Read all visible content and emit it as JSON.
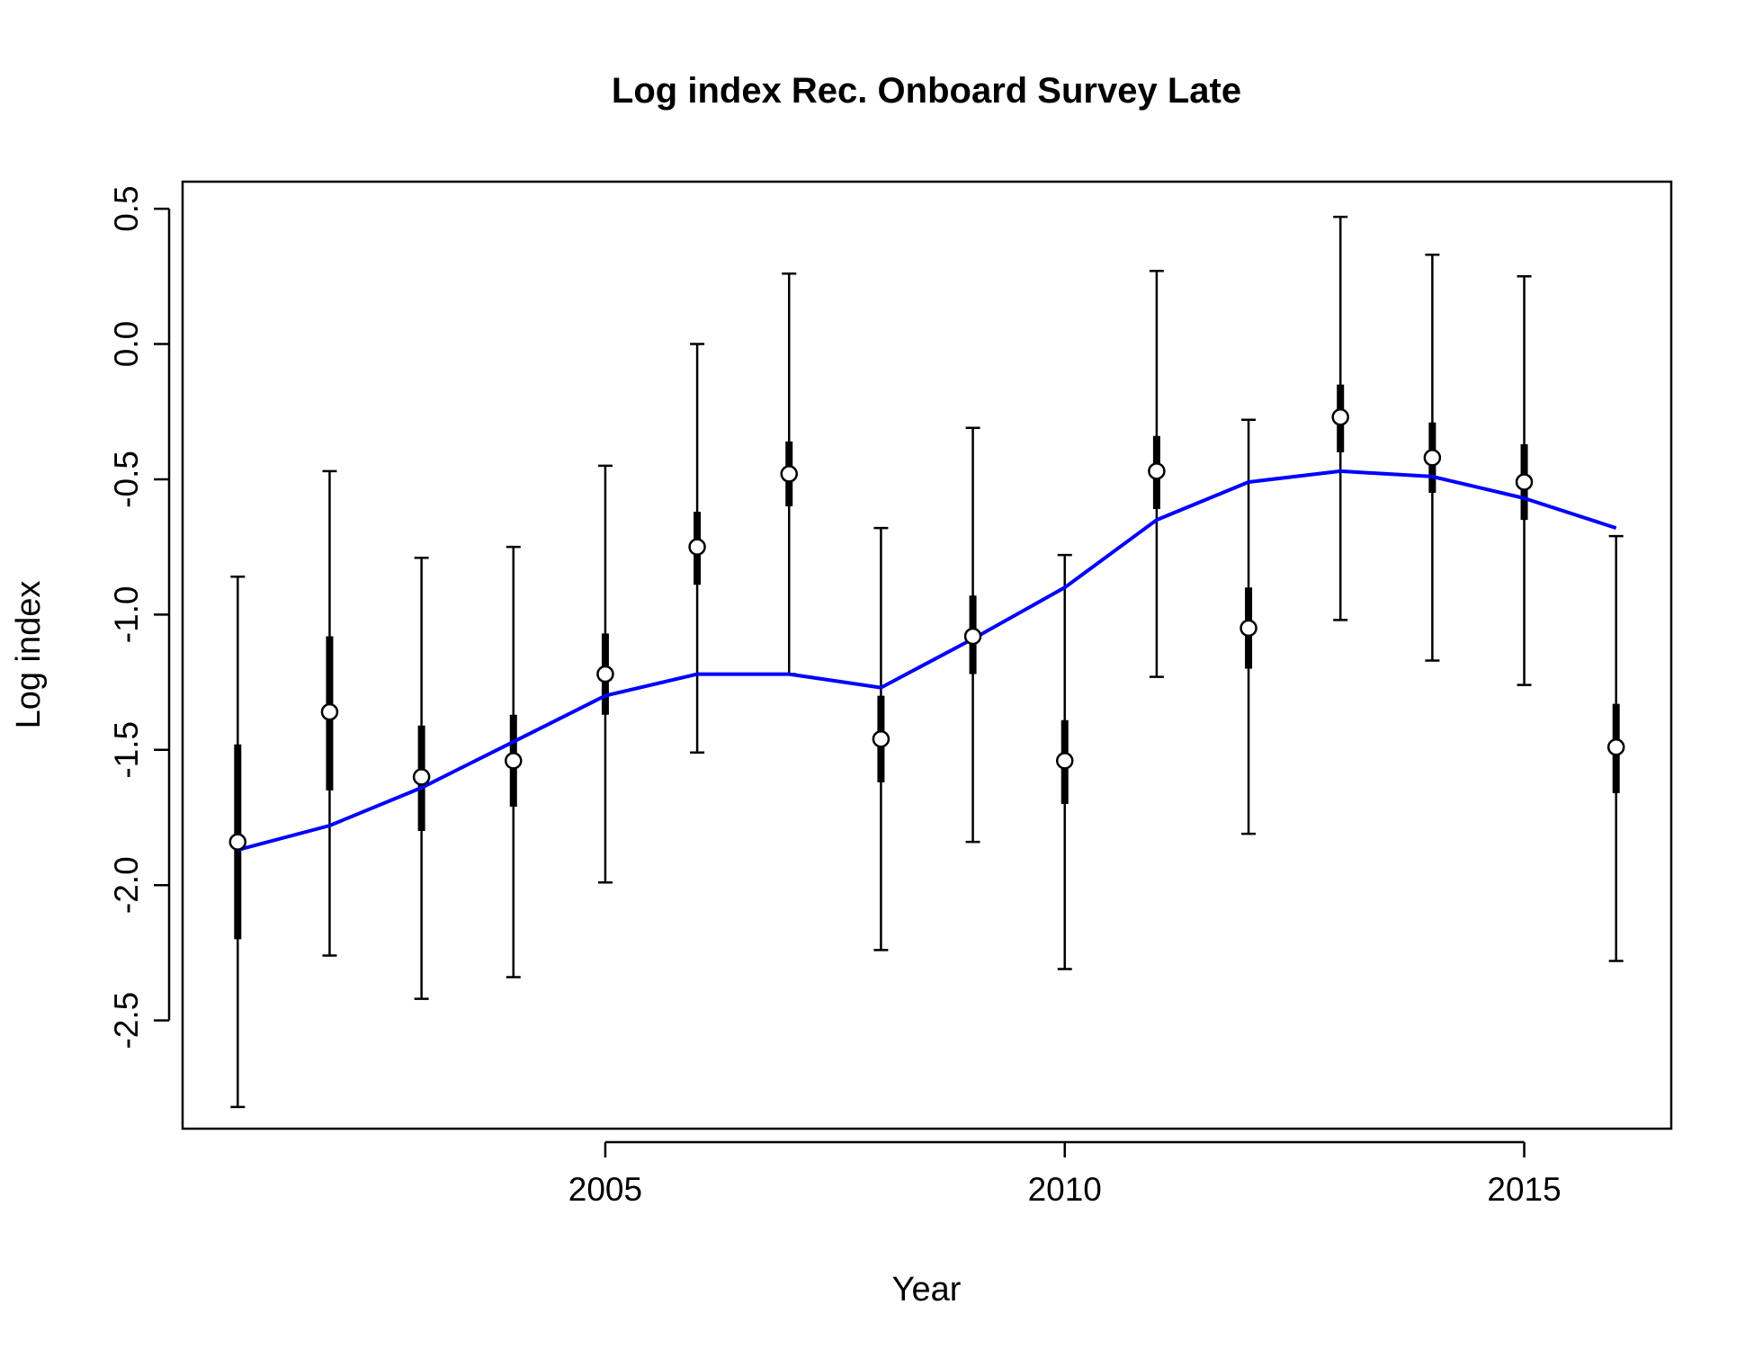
{
  "chart_data": {
    "type": "line",
    "title": "Log index Rec. Onboard Survey Late",
    "xlabel": "Year",
    "ylabel": "Log index",
    "xlim": [
      2000.4,
      2016.6
    ],
    "ylim": [
      -2.9,
      0.6
    ],
    "x_ticks": [
      2005,
      2010,
      2015
    ],
    "y_ticks": [
      -2.5,
      -2.0,
      -1.5,
      -1.0,
      -0.5,
      0.0,
      0.5
    ],
    "x_tick_labels": [
      "2005",
      "2010",
      "2015"
    ],
    "y_tick_labels": [
      "-2.5",
      "-2.0",
      "-1.5",
      "-1.0",
      "-0.5",
      "0.0",
      "0.5"
    ],
    "grid": false,
    "legend": "none",
    "colors": {
      "fit_line": "#0000ff",
      "observed": "#000000",
      "point_fill": "#ffffff"
    },
    "observed": {
      "x": [
        2001,
        2002,
        2003,
        2004,
        2005,
        2006,
        2007,
        2008,
        2009,
        2010,
        2011,
        2012,
        2013,
        2014,
        2015,
        2016
      ],
      "y": [
        -1.84,
        -1.36,
        -1.6,
        -1.54,
        -1.22,
        -0.75,
        -0.48,
        -1.46,
        -1.08,
        -1.54,
        -0.47,
        -1.05,
        -0.27,
        -0.42,
        -0.51,
        -1.49
      ],
      "outer_low": [
        -2.82,
        -2.26,
        -2.42,
        -2.34,
        -1.99,
        -1.51,
        -1.22,
        -2.24,
        -1.84,
        -2.31,
        -1.23,
        -1.81,
        -1.02,
        -1.17,
        -1.26,
        -2.28
      ],
      "outer_high": [
        -0.86,
        -0.47,
        -0.79,
        -0.75,
        -0.45,
        0.0,
        0.26,
        -0.68,
        -0.31,
        -0.78,
        0.27,
        -0.28,
        0.47,
        0.33,
        0.25,
        -0.71
      ],
      "inner_low": [
        -2.2,
        -1.65,
        -1.8,
        -1.71,
        -1.37,
        -0.89,
        -0.6,
        -1.62,
        -1.22,
        -1.7,
        -0.61,
        -1.2,
        -0.4,
        -0.55,
        -0.65,
        -1.66
      ],
      "inner_high": [
        -1.48,
        -1.08,
        -1.41,
        -1.37,
        -1.07,
        -0.62,
        -0.36,
        -1.3,
        -0.93,
        -1.39,
        -0.34,
        -0.9,
        -0.15,
        -0.29,
        -0.37,
        -1.33
      ]
    },
    "fit": {
      "x": [
        2001,
        2002,
        2003,
        2004,
        2005,
        2006,
        2007,
        2008,
        2009,
        2010,
        2011,
        2012,
        2013,
        2014,
        2015,
        2016
      ],
      "y": [
        -1.87,
        -1.78,
        -1.64,
        -1.47,
        -1.3,
        -1.22,
        -1.22,
        -1.27,
        -1.09,
        -0.9,
        -0.65,
        -0.51,
        -0.47,
        -0.49,
        -0.57,
        -0.68
      ]
    }
  }
}
